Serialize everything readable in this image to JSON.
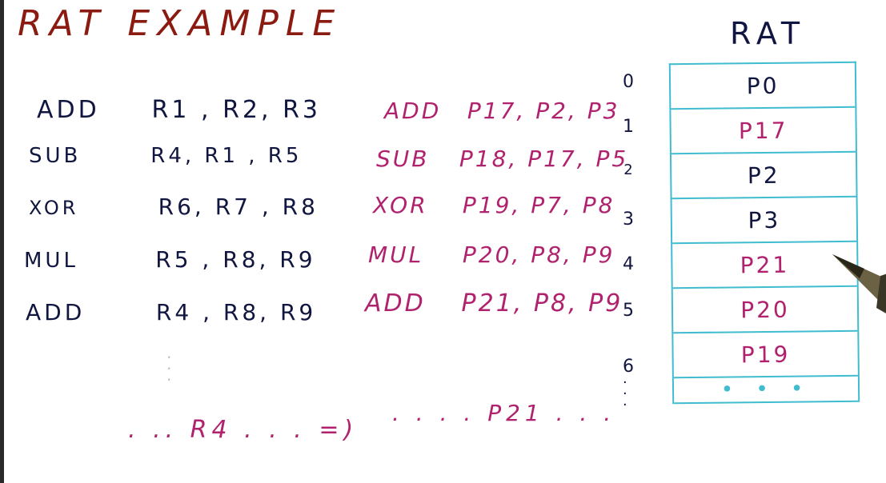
{
  "title": {
    "word1": "RAT",
    "word2": "EXAMPLE"
  },
  "original_instructions": [
    {
      "op": "ADD",
      "operands": "R1 , R2, R3"
    },
    {
      "op": "SUB",
      "operands": "R4, R1 , R5"
    },
    {
      "op": "XOR",
      "operands": "R6, R7 , R8"
    },
    {
      "op": "MUL",
      "operands": "R5 , R8, R9"
    },
    {
      "op": "ADD",
      "operands": "R4 , R8, R9"
    }
  ],
  "renamed_instructions": [
    {
      "op": "ADD",
      "operands": "P17, P2, P3"
    },
    {
      "op": "SUB",
      "operands": "P18, P17, P5"
    },
    {
      "op": "XOR",
      "operands": "P19, P7, P8"
    },
    {
      "op": "MUL",
      "operands": "P20, P8, P9"
    },
    {
      "op": "ADD",
      "operands": "P21, P8, P9"
    }
  ],
  "rat": {
    "title": "RAT",
    "indices": [
      "0",
      "1",
      "2",
      "3",
      "4",
      "5",
      "6"
    ],
    "entries": [
      "P0",
      "P17",
      "P2",
      "P3",
      "P21",
      "P20",
      "P19"
    ],
    "dots": "• • •"
  },
  "bottom": {
    "left": ". .. R4 . . .  =)",
    "right": ". .  . . P21 . . ."
  },
  "colors": {
    "title": "#8b1a10",
    "original": "#10163f",
    "renamed": "#b0226e",
    "table": "#40bcd0"
  }
}
